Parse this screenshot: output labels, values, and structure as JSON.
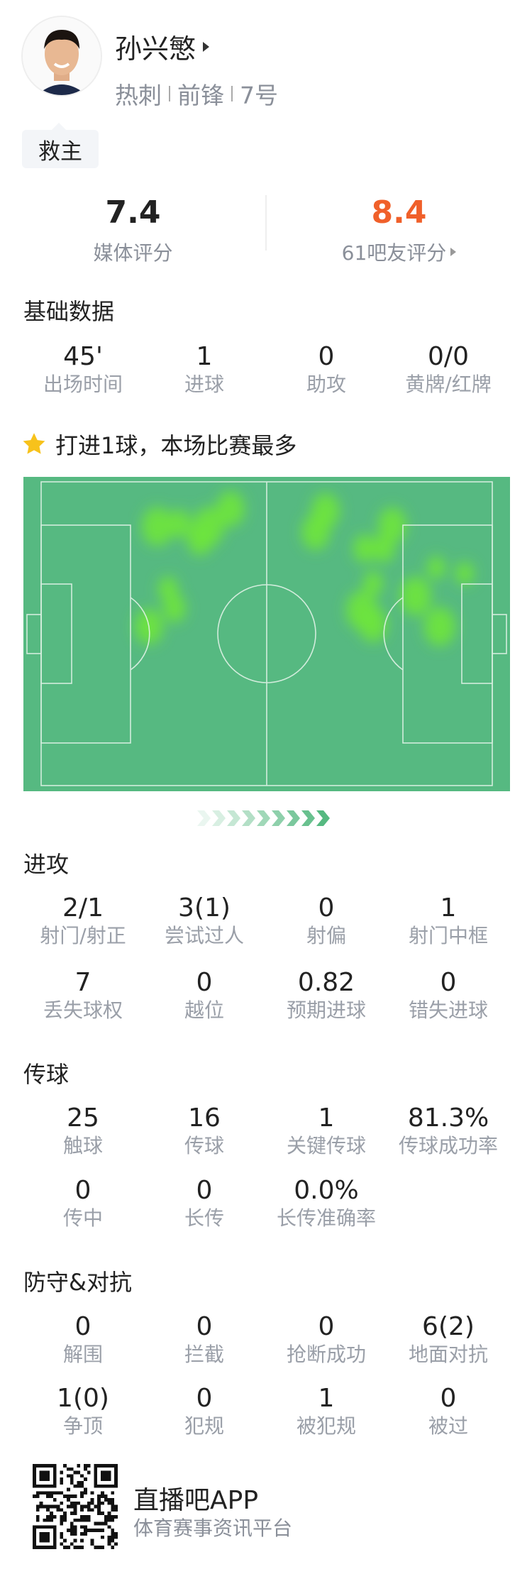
{
  "player": {
    "name": "孙兴慜",
    "team": "热刺",
    "position": "前锋",
    "number": "7号",
    "badge": "救主"
  },
  "ratings": {
    "media": {
      "value": "7.4",
      "label": "媒体评分",
      "color": "#222222"
    },
    "fans": {
      "value": "8.4",
      "label": "61吧友评分",
      "color": "#f0602a"
    }
  },
  "basic": {
    "title": "基础数据",
    "stats": [
      {
        "value": "45'",
        "label": "出场时间"
      },
      {
        "value": "1",
        "label": "进球"
      },
      {
        "value": "0",
        "label": "助攻"
      },
      {
        "value": "0/0",
        "label": "黄牌/红牌"
      }
    ]
  },
  "highlight": {
    "icon": "star-icon",
    "text": "打进1球，本场比赛最多",
    "star_color": "#f7c21b"
  },
  "heatmap": {
    "pitch_color": "#56b981",
    "heat_color": "#6ee63a",
    "direction_icon": "chevron-arrows-right"
  },
  "attack": {
    "title": "进攻",
    "stats": [
      {
        "value": "2/1",
        "label": "射门/射正"
      },
      {
        "value": "3(1)",
        "label": "尝试过人"
      },
      {
        "value": "0",
        "label": "射偏"
      },
      {
        "value": "1",
        "label": "射门中框"
      },
      {
        "value": "7",
        "label": "丢失球权"
      },
      {
        "value": "0",
        "label": "越位"
      },
      {
        "value": "0.82",
        "label": "预期进球"
      },
      {
        "value": "0",
        "label": "错失进球"
      }
    ]
  },
  "passing": {
    "title": "传球",
    "stats": [
      {
        "value": "25",
        "label": "触球"
      },
      {
        "value": "16",
        "label": "传球"
      },
      {
        "value": "1",
        "label": "关键传球"
      },
      {
        "value": "81.3%",
        "label": "传球成功率"
      },
      {
        "value": "0",
        "label": "传中"
      },
      {
        "value": "0",
        "label": "长传"
      },
      {
        "value": "0.0%",
        "label": "长传准确率"
      }
    ]
  },
  "defense": {
    "title": "防守&对抗",
    "stats": [
      {
        "value": "0",
        "label": "解围"
      },
      {
        "value": "0",
        "label": "拦截"
      },
      {
        "value": "0",
        "label": "抢断成功"
      },
      {
        "value": "6(2)",
        "label": "地面对抗"
      },
      {
        "value": "1(0)",
        "label": "争顶"
      },
      {
        "value": "0",
        "label": "犯规"
      },
      {
        "value": "1",
        "label": "被犯规"
      },
      {
        "value": "0",
        "label": "被过"
      }
    ]
  },
  "footer": {
    "app_name": "直播吧APP",
    "tagline": "体育赛事资讯平台",
    "qr_icon": "qr-code"
  }
}
